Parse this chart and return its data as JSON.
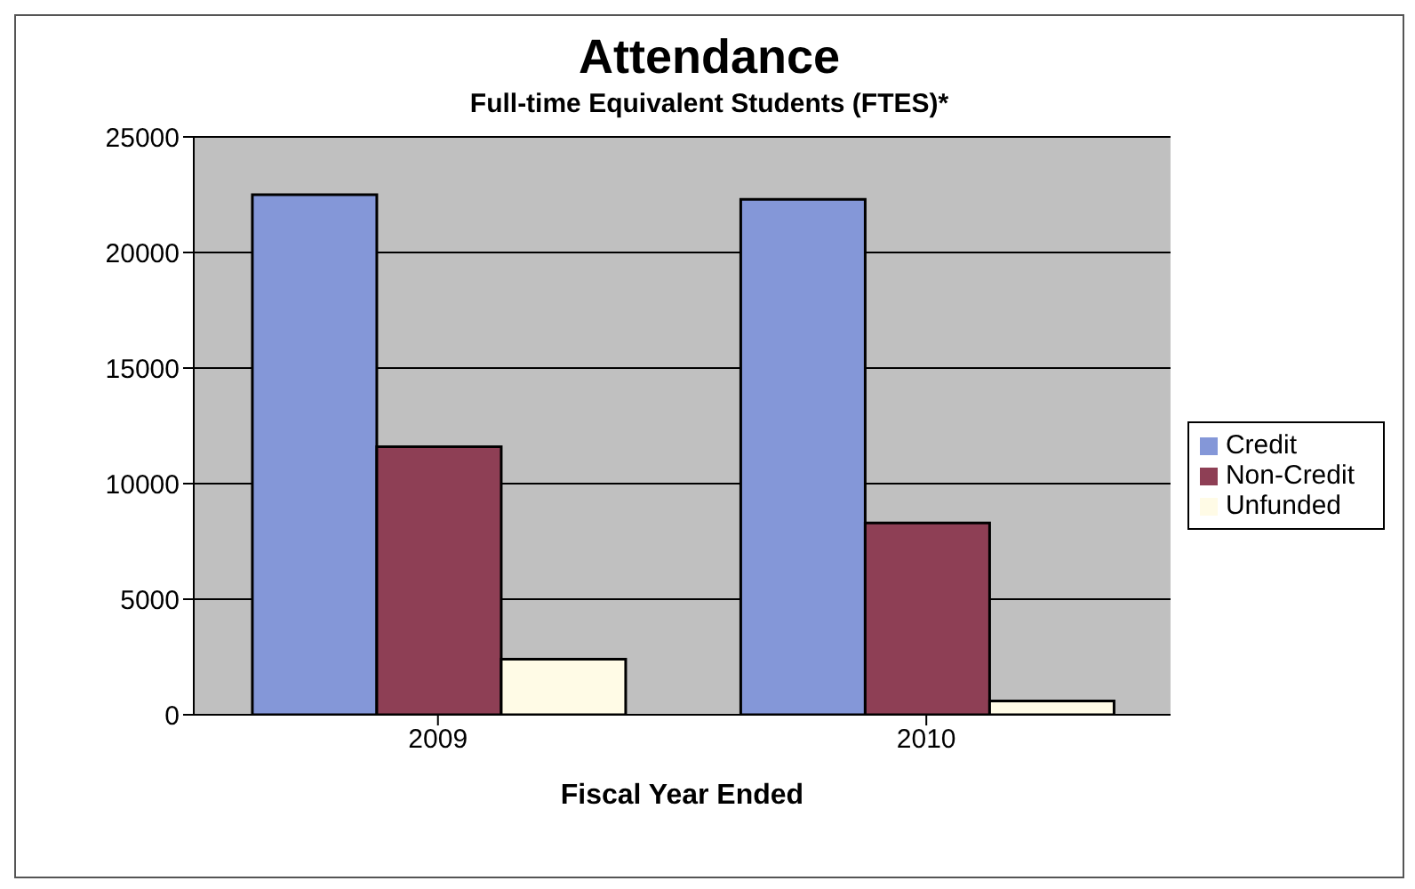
{
  "chart_data": {
    "type": "bar",
    "title": "Attendance",
    "subtitle": "Full-time Equivalent Students (FTES)*",
    "xlabel": "Fiscal Year Ended",
    "categories": [
      "2009",
      "2010"
    ],
    "series": [
      {
        "name": "Credit",
        "color": "#8497d8",
        "values": [
          22500,
          22300
        ]
      },
      {
        "name": "Non-Credit",
        "color": "#8e3f55",
        "values": [
          11600,
          8300
        ]
      },
      {
        "name": "Unfunded",
        "color": "#fffbe6",
        "values": [
          2400,
          600
        ]
      }
    ],
    "ylim": [
      0,
      25000
    ],
    "yticks": [
      0,
      5000,
      10000,
      15000,
      20000,
      25000
    ],
    "grid": "y",
    "legend": "right"
  }
}
